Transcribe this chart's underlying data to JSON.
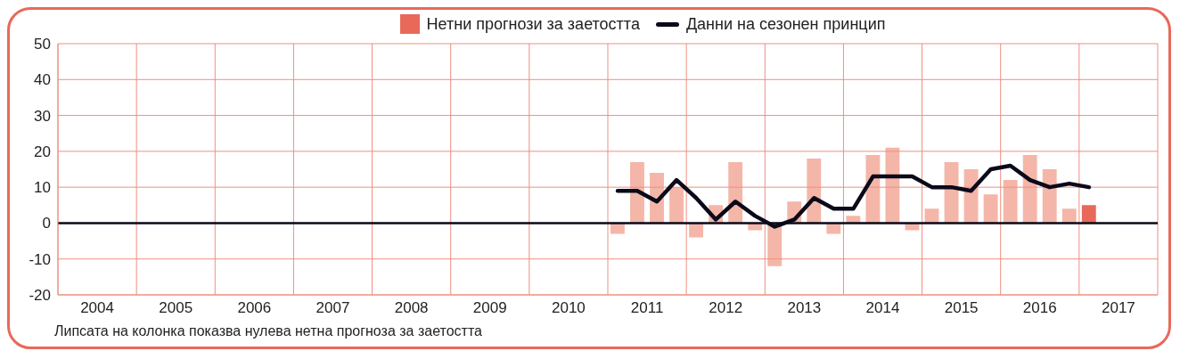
{
  "chart_data": {
    "type": "bar",
    "x": [
      2011.125,
      2011.375,
      2011.625,
      2011.875,
      2012.125,
      2012.375,
      2012.625,
      2012.875,
      2013.125,
      2013.375,
      2013.625,
      2013.875,
      2014.125,
      2014.375,
      2014.625,
      2014.875,
      2015.125,
      2015.375,
      2015.625,
      2015.875,
      2016.125,
      2016.375,
      2016.625,
      2016.875,
      2017.125
    ],
    "series": [
      {
        "name": "Нетни прогнози за заетостта",
        "color": "#e8695a",
        "colors": [
          "#f4b6a8",
          "#f4b6a8",
          "#f4b6a8",
          "#f4b6a8",
          "#f4b6a8",
          "#f4b6a8",
          "#f4b6a8",
          "#f4b6a8",
          "#f4b6a8",
          "#f4b6a8",
          "#f4b6a8",
          "#f4b6a8",
          "#f4b6a8",
          "#f4b6a8",
          "#f4b6a8",
          "#f4b6a8",
          "#f4b6a8",
          "#f4b6a8",
          "#f4b6a8",
          "#f4b6a8",
          "#f4b6a8",
          "#f4b6a8",
          "#f4b6a8",
          "#f4b6a8",
          "#e8695a"
        ],
        "values": [
          -3,
          17,
          14,
          10,
          -4,
          5,
          17,
          -2,
          -12,
          6,
          18,
          -3,
          2,
          19,
          21,
          -2,
          4,
          17,
          15,
          8,
          12,
          19,
          15,
          4,
          5
        ]
      },
      {
        "type": "line",
        "name": "Данни на сезонен принцип",
        "color": "#0a0a1a",
        "values": [
          9,
          9,
          6,
          12,
          7,
          1,
          6,
          2,
          -1,
          1,
          7,
          4,
          4,
          13,
          13,
          13,
          10,
          10,
          9,
          15,
          16,
          12,
          10,
          11,
          10
        ]
      }
    ],
    "xlim": [
      2004,
      2018
    ],
    "xticks": [
      {
        "value": 2004,
        "label": null
      },
      {
        "value": 2004.5,
        "label": "2004"
      },
      {
        "value": 2005,
        "label": null
      },
      {
        "value": 2005.5,
        "label": "2005"
      },
      {
        "value": 2006,
        "label": null
      },
      {
        "value": 2006.5,
        "label": "2006"
      },
      {
        "value": 2007,
        "label": null
      },
      {
        "value": 2007.5,
        "label": "2007"
      },
      {
        "value": 2008,
        "label": null
      },
      {
        "value": 2008.5,
        "label": "2008"
      },
      {
        "value": 2009,
        "label": null
      },
      {
        "value": 2009.5,
        "label": "2009"
      },
      {
        "value": 2010,
        "label": null
      },
      {
        "value": 2010.5,
        "label": "2010"
      },
      {
        "value": 2011,
        "label": null
      },
      {
        "value": 2011.5,
        "label": "2011"
      },
      {
        "value": 2012,
        "label": null
      },
      {
        "value": 2012.5,
        "label": "2012"
      },
      {
        "value": 2013,
        "label": null
      },
      {
        "value": 2013.5,
        "label": "2013"
      },
      {
        "value": 2014,
        "label": null
      },
      {
        "value": 2014.5,
        "label": "2014"
      },
      {
        "value": 2015,
        "label": null
      },
      {
        "value": 2015.5,
        "label": "2015"
      },
      {
        "value": 2016,
        "label": null
      },
      {
        "value": 2016.5,
        "label": "2016"
      },
      {
        "value": 2017,
        "label": null
      },
      {
        "value": 2017.5,
        "label": "2017"
      },
      {
        "value": 2018,
        "label": null
      }
    ],
    "ylim": [
      -20,
      50
    ],
    "yticks": [
      -20,
      -10,
      0,
      10,
      20,
      30,
      40,
      50
    ],
    "grid": true,
    "legend": "top",
    "marker": "none",
    "line_style": "solid",
    "ref_lines": [
      {
        "axis": "y",
        "value": 0,
        "color": "#0a0a1a"
      }
    ],
    "annotations": [
      "Липсата на колонка показва нулева нетна прогноза за заетостта"
    ]
  }
}
